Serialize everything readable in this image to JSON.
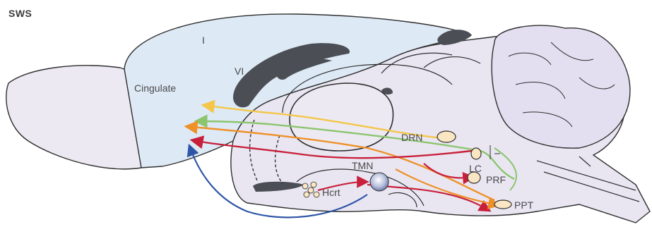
{
  "diagram": {
    "state_label": "SWS",
    "cortical_labels": {
      "layer_one": "I",
      "layer_six": "VI",
      "cingulate": "Cingulate"
    },
    "nuclei": {
      "drn": "DRN",
      "lc": "LC",
      "tmn": "TMN",
      "hcrt": "Hcrt",
      "prf": "PRF",
      "ppt": "PPT"
    },
    "colors": {
      "cortex_fill": "#dde9f5",
      "brain_fill": "#e9e6f2",
      "dark_structure": "#4b4f55",
      "outline": "#2f2f2f",
      "yellow_pathway": "#f4c64a",
      "green_pathway": "#8cc56d",
      "orange_pathway": "#ee9128",
      "red_pathway": "#c8203a",
      "blue_pathway": "#2f56a6",
      "nucleus_fill": "#fbe6c4"
    }
  }
}
